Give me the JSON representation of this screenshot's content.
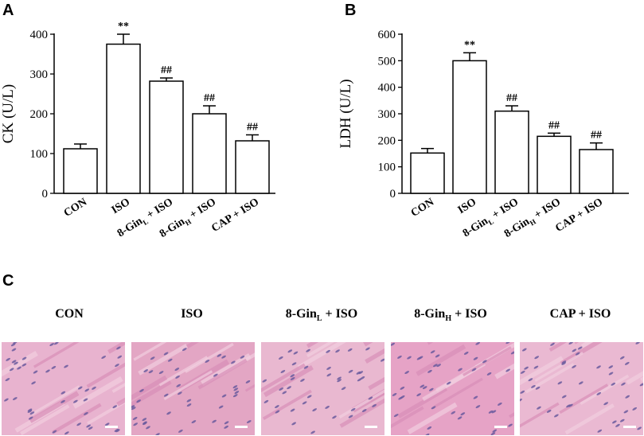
{
  "panels": {
    "a": "A",
    "b": "B",
    "c": "C"
  },
  "chart_data": [
    {
      "type": "bar",
      "panel": "A",
      "ylabel": "CK (U/L)",
      "ylim": [
        0,
        400
      ],
      "yticks": [
        0,
        100,
        200,
        300,
        400
      ],
      "categories": [
        "CON",
        "ISO",
        "8-GinL + ISO",
        "8-GinH + ISO",
        "CAP + ISO"
      ],
      "category_parts": [
        {
          "main": "CON",
          "sub": "",
          "rest": ""
        },
        {
          "main": "ISO",
          "sub": "",
          "rest": ""
        },
        {
          "main": "8-Gin",
          "sub": "L",
          "rest": " + ISO"
        },
        {
          "main": "8-Gin",
          "sub": "H",
          "rest": " + ISO"
        },
        {
          "main": "CAP + ISO",
          "sub": "",
          "rest": ""
        }
      ],
      "values": [
        112,
        375,
        282,
        200,
        132
      ],
      "errors": [
        12,
        25,
        8,
        20,
        15
      ],
      "annotations": [
        "",
        "**",
        "##",
        "##",
        "##"
      ]
    },
    {
      "type": "bar",
      "panel": "B",
      "ylabel": "LDH (U/L)",
      "ylim": [
        0,
        600
      ],
      "yticks": [
        0,
        100,
        200,
        300,
        400,
        500,
        600
      ],
      "categories": [
        "CON",
        "ISO",
        "8-GinL + ISO",
        "8-GinH + ISO",
        "CAP + ISO"
      ],
      "category_parts": [
        {
          "main": "CON",
          "sub": "",
          "rest": ""
        },
        {
          "main": "ISO",
          "sub": "",
          "rest": ""
        },
        {
          "main": "8-Gin",
          "sub": "L",
          "rest": " + ISO"
        },
        {
          "main": "8-Gin",
          "sub": "H",
          "rest": " + ISO"
        },
        {
          "main": "CAP + ISO",
          "sub": "",
          "rest": ""
        }
      ],
      "values": [
        152,
        500,
        310,
        215,
        165
      ],
      "errors": [
        17,
        30,
        20,
        12,
        25
      ],
      "annotations": [
        "",
        "**",
        "##",
        "##",
        "##"
      ]
    }
  ],
  "histology": {
    "titles": [
      {
        "main": "CON",
        "sub": "",
        "rest": ""
      },
      {
        "main": "ISO",
        "sub": "",
        "rest": ""
      },
      {
        "main": "8-Gin",
        "sub": "L",
        "rest": " + ISO"
      },
      {
        "main": "8-Gin",
        "sub": "H",
        "rest": " + ISO"
      },
      {
        "main": "CAP + ISO",
        "sub": "",
        "rest": ""
      }
    ],
    "tissue_colors": [
      "#e8b3cf",
      "#e3a6c4",
      "#e9b8d0",
      "#e6a3c6",
      "#eab9d2"
    ],
    "nucleus_color": "#6a5a9e",
    "scale_bar_color": "#ffffff"
  }
}
